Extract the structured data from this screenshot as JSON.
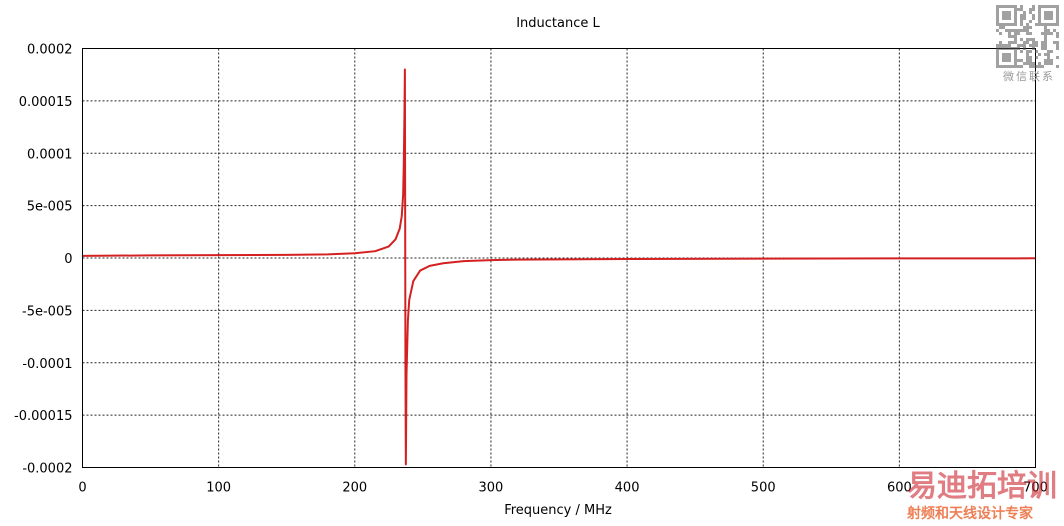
{
  "chart_data": {
    "type": "line",
    "title": "Inductance L",
    "xlabel": "Frequency / MHz",
    "ylabel": "",
    "xlim": [
      0,
      700
    ],
    "ylim": [
      -0.0002,
      0.0002
    ],
    "grid": true,
    "x_ticks": [
      "0",
      "100",
      "200",
      "300",
      "400",
      "500",
      "600",
      "700"
    ],
    "y_ticks": [
      "0.0002",
      "0.00015",
      "0.0001",
      "5e-005",
      "0",
      "-5e-005",
      "-0.0001",
      "-0.00015",
      "-0.0002"
    ],
    "y_tick_values": [
      0.0002,
      0.00015,
      0.0001,
      5e-05,
      0,
      -5e-05,
      -0.0001,
      -0.00015,
      -0.0002
    ],
    "series": [
      {
        "color": "#d42020",
        "x": [
          0,
          50,
          100,
          150,
          180,
          200,
          215,
          225,
          230,
          233,
          234.5,
          235.5,
          236,
          236.5,
          236.8,
          237.0,
          237.2,
          237.5,
          238,
          239,
          240,
          243,
          248,
          255,
          265,
          280,
          300,
          320,
          400,
          500,
          600,
          700
        ],
        "y": [
          2e-06,
          2.5e-06,
          2.8e-06,
          3e-06,
          3.5e-06,
          4.5e-06,
          6.5e-06,
          1.1e-05,
          1.8e-05,
          2.8e-05,
          4e-05,
          6e-05,
          9e-05,
          0.00014,
          0.00018,
          5e-05,
          -0.0001,
          -0.000197,
          -0.00011,
          -6e-05,
          -4e-05,
          -2.2e-05,
          -1.2e-05,
          -7.5e-06,
          -5e-06,
          -3e-06,
          -2e-06,
          -1.5e-06,
          -1e-06,
          -6e-07,
          -4e-07,
          -3e-07
        ]
      }
    ]
  },
  "watermark": {
    "qr_caption": "微信联系",
    "brand": "易迪拓培训",
    "tagline": "射频和天线设计专家"
  },
  "colors": {
    "series": "#d42020",
    "brand_red": "#c8141e",
    "brand_orange": "#e8551e"
  }
}
